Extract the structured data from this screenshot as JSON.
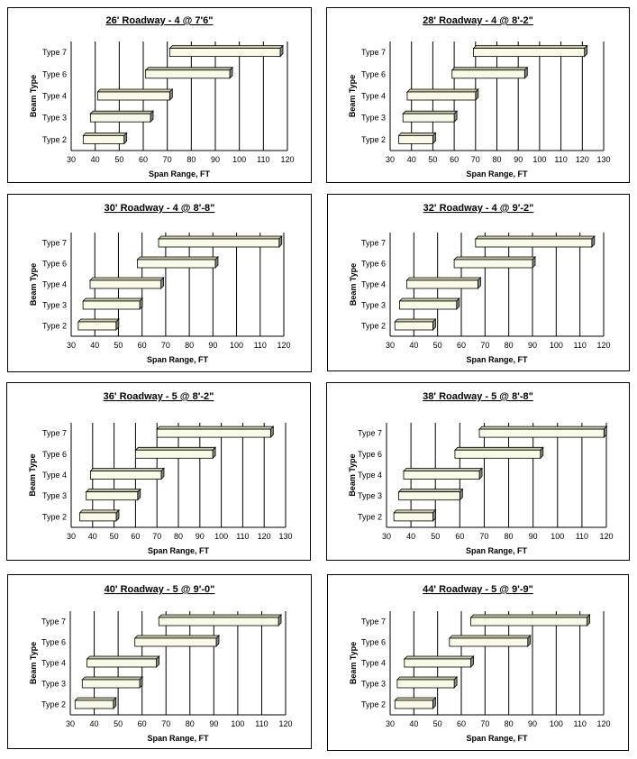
{
  "chart_data": [
    {
      "type": "bar",
      "title": "26' Roadway - 4 @ 7'6\"",
      "xlabel": "Span Range, FT",
      "ylabel": "Beam Type",
      "xlim": [
        30,
        120
      ],
      "xticks": [
        30,
        40,
        50,
        60,
        70,
        80,
        90,
        100,
        110,
        120
      ],
      "categories": [
        "Type 2",
        "Type 3",
        "Type 4",
        "Type 6",
        "Type 7"
      ],
      "ranges": [
        [
          35,
          52
        ],
        [
          38,
          63
        ],
        [
          41,
          71
        ],
        [
          61,
          96
        ],
        [
          71,
          117
        ]
      ]
    },
    {
      "type": "bar",
      "title": "28' Roadway - 4 @ 8'-2\"",
      "xlabel": "Span Range, FT",
      "ylabel": "Beam Type",
      "xlim": [
        30,
        130
      ],
      "xticks": [
        30,
        40,
        50,
        60,
        70,
        80,
        90,
        100,
        110,
        120,
        130
      ],
      "categories": [
        "Type 2",
        "Type 3",
        "Type 4",
        "Type 6",
        "Type 7"
      ],
      "ranges": [
        [
          34,
          50
        ],
        [
          36,
          60
        ],
        [
          38,
          70
        ],
        [
          59,
          93
        ],
        [
          69,
          121
        ]
      ]
    },
    {
      "type": "bar",
      "title": "30' Roadway - 4 @ 8'-8\"",
      "xlabel": "Span Range, FT",
      "ylabel": "Beam Type",
      "xlim": [
        30,
        120
      ],
      "xticks": [
        30,
        40,
        50,
        60,
        70,
        80,
        90,
        100,
        110,
        120
      ],
      "categories": [
        "Type 2",
        "Type 3",
        "Type 4",
        "Type 6",
        "Type 7"
      ],
      "ranges": [
        [
          33,
          49
        ],
        [
          35,
          59
        ],
        [
          38,
          68
        ],
        [
          58,
          91
        ],
        [
          67,
          118
        ]
      ]
    },
    {
      "type": "bar",
      "title": "32' Roadway - 4 @ 9'-2\"",
      "xlabel": "Span Range, FT",
      "ylabel": "Beam Type",
      "xlim": [
        30,
        120
      ],
      "xticks": [
        30,
        40,
        50,
        60,
        70,
        80,
        90,
        100,
        110,
        120
      ],
      "categories": [
        "Type 2",
        "Type 3",
        "Type 4",
        "Type 6",
        "Type 7"
      ],
      "ranges": [
        [
          32,
          48
        ],
        [
          34,
          58
        ],
        [
          37,
          67
        ],
        [
          57,
          90
        ],
        [
          66,
          115
        ]
      ]
    },
    {
      "type": "bar",
      "title": "36' Roadway - 5 @ 8'-2\"",
      "xlabel": "Span Range, FT",
      "ylabel": "Beam Type",
      "xlim": [
        30,
        130
      ],
      "xticks": [
        30,
        40,
        50,
        60,
        70,
        80,
        90,
        100,
        110,
        120,
        130
      ],
      "categories": [
        "Type 2",
        "Type 3",
        "Type 4",
        "Type 6",
        "Type 7"
      ],
      "ranges": [
        [
          34,
          51
        ],
        [
          37,
          61
        ],
        [
          39,
          72
        ],
        [
          60,
          96
        ],
        [
          70,
          123
        ]
      ]
    },
    {
      "type": "bar",
      "title": "38' Roadway - 5 @ 8'-8\"",
      "xlabel": "Span Range, FT",
      "ylabel": "Beam Type",
      "xlim": [
        30,
        120
      ],
      "xticks": [
        30,
        40,
        50,
        60,
        70,
        80,
        90,
        100,
        110,
        120
      ],
      "categories": [
        "Type 2",
        "Type 3",
        "Type 4",
        "Type 6",
        "Type 7"
      ],
      "ranges": [
        [
          33,
          49
        ],
        [
          35,
          60
        ],
        [
          37,
          68
        ],
        [
          58,
          93
        ],
        [
          68,
          119
        ]
      ]
    },
    {
      "type": "bar",
      "title": "40' Roadway - 5 @ 9'-0\"",
      "xlabel": "Span Range, FT",
      "ylabel": "Beam Type",
      "xlim": [
        30,
        120
      ],
      "xticks": [
        30,
        40,
        50,
        60,
        70,
        80,
        90,
        100,
        110,
        120
      ],
      "categories": [
        "Type 2",
        "Type 3",
        "Type 4",
        "Type 6",
        "Type 7"
      ],
      "ranges": [
        [
          32,
          48
        ],
        [
          35,
          59
        ],
        [
          37,
          66
        ],
        [
          57,
          91
        ],
        [
          67,
          117
        ]
      ]
    },
    {
      "type": "bar",
      "title": "44' Roadway - 5 @ 9'-9\"",
      "xlabel": "Span Range, FT",
      "ylabel": "Beam Type",
      "xlim": [
        30,
        120
      ],
      "xticks": [
        30,
        40,
        50,
        60,
        70,
        80,
        90,
        100,
        110,
        120
      ],
      "categories": [
        "Type 2",
        "Type 3",
        "Type 4",
        "Type 6",
        "Type 7"
      ],
      "ranges": [
        [
          32,
          48
        ],
        [
          33,
          57
        ],
        [
          36,
          64
        ],
        [
          55,
          88
        ],
        [
          64,
          113
        ]
      ]
    }
  ]
}
